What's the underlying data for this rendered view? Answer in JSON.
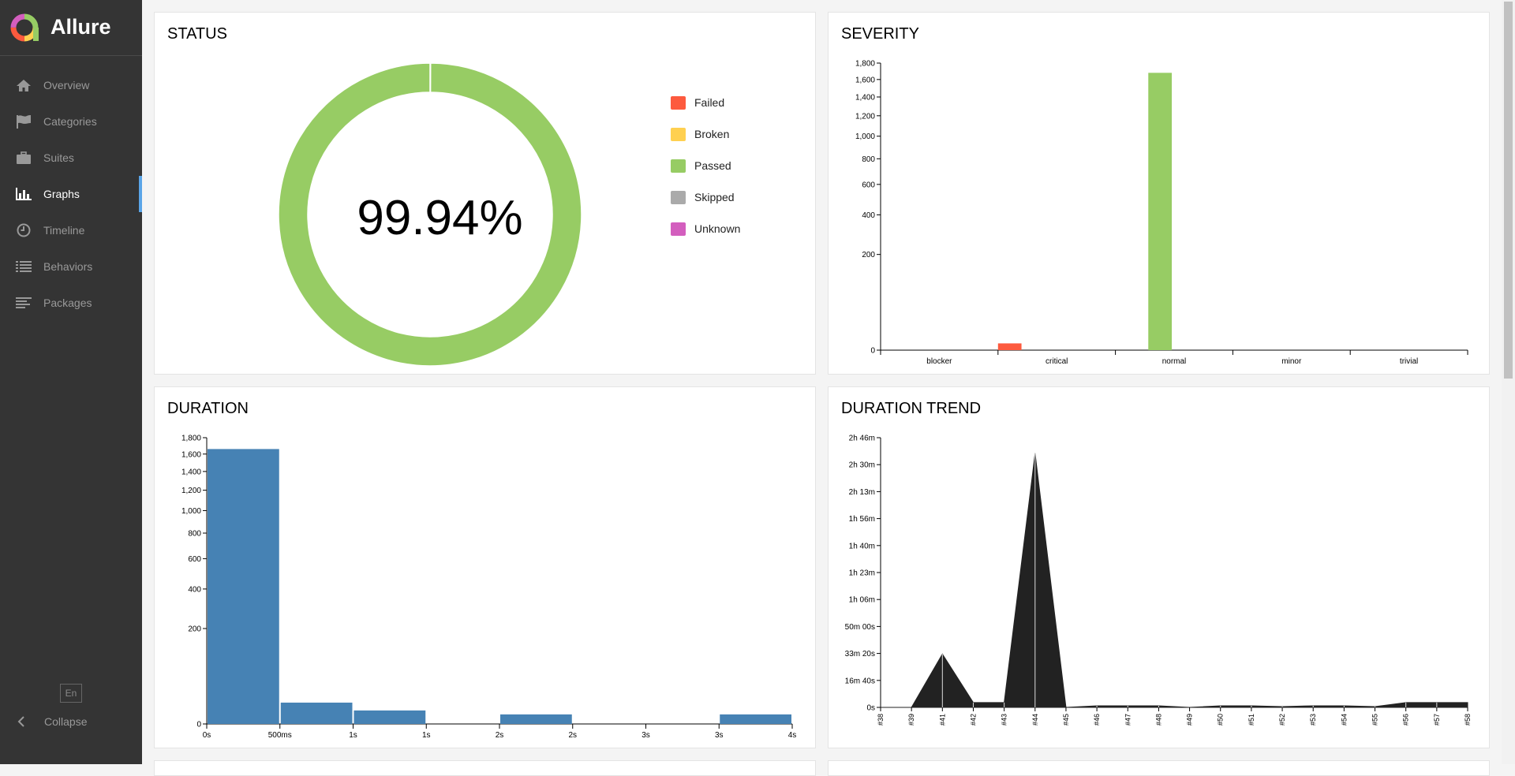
{
  "app": {
    "name": "Allure"
  },
  "nav": [
    {
      "label": "Overview",
      "icon": "home-icon",
      "active": false
    },
    {
      "label": "Categories",
      "icon": "flag-icon",
      "active": false
    },
    {
      "label": "Suites",
      "icon": "briefcase-icon",
      "active": false
    },
    {
      "label": "Graphs",
      "icon": "bar-chart-icon",
      "active": true
    },
    {
      "label": "Timeline",
      "icon": "clock-icon",
      "active": false
    },
    {
      "label": "Behaviors",
      "icon": "list-icon",
      "active": false
    },
    {
      "label": "Packages",
      "icon": "align-left-icon",
      "active": false
    }
  ],
  "footer": {
    "lang": "En",
    "collapse": "Collapse"
  },
  "colors": {
    "failed": "#fd5a3e",
    "broken": "#ffd050",
    "passed": "#97cc64",
    "skipped": "#aaaaaa",
    "unknown": "#d35ebe",
    "duration": "#4682b4",
    "trend": "#222222",
    "sidebar": "#343434",
    "accent": "#5aa5e8"
  },
  "status": {
    "title": "STATUS",
    "percent": "99.94%",
    "legend": [
      {
        "label": "Failed",
        "color": "#fd5a3e"
      },
      {
        "label": "Broken",
        "color": "#ffd050"
      },
      {
        "label": "Passed",
        "color": "#97cc64"
      },
      {
        "label": "Skipped",
        "color": "#aaaaaa"
      },
      {
        "label": "Unknown",
        "color": "#d35ebe"
      }
    ]
  },
  "severity": {
    "title": "SEVERITY"
  },
  "duration": {
    "title": "DURATION"
  },
  "trend": {
    "title": "DURATION TREND"
  },
  "chart_data": [
    {
      "type": "pie",
      "title": "STATUS",
      "categories": [
        "Failed",
        "Broken",
        "Passed",
        "Skipped",
        "Unknown"
      ],
      "values": [
        0.06,
        0,
        99.94,
        0,
        0
      ],
      "center_label": "99.94%"
    },
    {
      "type": "bar",
      "title": "SEVERITY",
      "categories": [
        "blocker",
        "critical",
        "normal",
        "minor",
        "trivial"
      ],
      "series": [
        {
          "name": "Failed",
          "values": [
            0,
            1,
            0,
            0,
            0
          ],
          "color": "#fd5a3e"
        },
        {
          "name": "Passed",
          "values": [
            0,
            0,
            1680,
            0,
            0
          ],
          "color": "#97cc64"
        }
      ],
      "yticks": [
        0,
        200,
        400,
        600,
        800,
        1000,
        1200,
        1400,
        1600,
        1800
      ],
      "ytick_labels": [
        "0",
        "200",
        "400",
        "600",
        "800",
        "1,000",
        "1,200",
        "1,400",
        "1,600",
        "1,800"
      ],
      "yscale": "sqrt",
      "ylim": [
        0,
        1800
      ]
    },
    {
      "type": "bar",
      "title": "DURATION",
      "x_tick_labels": [
        "0s",
        "500ms",
        "1s",
        "1s",
        "2s",
        "2s",
        "3s",
        "3s",
        "4s"
      ],
      "bins": [
        {
          "from": 0,
          "to": 1,
          "value": 1660
        },
        {
          "from": 1,
          "to": 2,
          "value": 10
        },
        {
          "from": 2,
          "to": 3,
          "value": 4
        },
        {
          "from": 3,
          "to": 4,
          "value": 0
        },
        {
          "from": 4,
          "to": 5,
          "value": 2
        },
        {
          "from": 5,
          "to": 6,
          "value": 0
        },
        {
          "from": 6,
          "to": 7,
          "value": 0
        },
        {
          "from": 7,
          "to": 8,
          "value": 2
        }
      ],
      "yticks": [
        0,
        200,
        400,
        600,
        800,
        1000,
        1200,
        1400,
        1600,
        1800
      ],
      "ytick_labels": [
        "0",
        "200",
        "400",
        "600",
        "800",
        "1,000",
        "1,200",
        "1,400",
        "1,600",
        "1,800"
      ],
      "yscale": "sqrt",
      "ylim": [
        0,
        1800
      ],
      "color": "#4682b4"
    },
    {
      "type": "area",
      "title": "DURATION TREND",
      "x": [
        "#38",
        "#39",
        "#41",
        "#42",
        "#43",
        "#44",
        "#45",
        "#46",
        "#47",
        "#48",
        "#49",
        "#50",
        "#51",
        "#52",
        "#53",
        "#54",
        "#55",
        "#56",
        "#57",
        "#58"
      ],
      "values_minutes": [
        0,
        0,
        33,
        3,
        3,
        157,
        0,
        1,
        1,
        1,
        0,
        1,
        1,
        0.5,
        1,
        1,
        0.5,
        3,
        3,
        3
      ],
      "ytick_labels": [
        "0s",
        "16m 40s",
        "33m 20s",
        "50m 00s",
        "1h 06m",
        "1h 23m",
        "1h 40m",
        "1h 56m",
        "2h 13m",
        "2h 30m",
        "2h 46m"
      ],
      "ylim_minutes": [
        0,
        166.67
      ],
      "color": "#222222"
    }
  ]
}
